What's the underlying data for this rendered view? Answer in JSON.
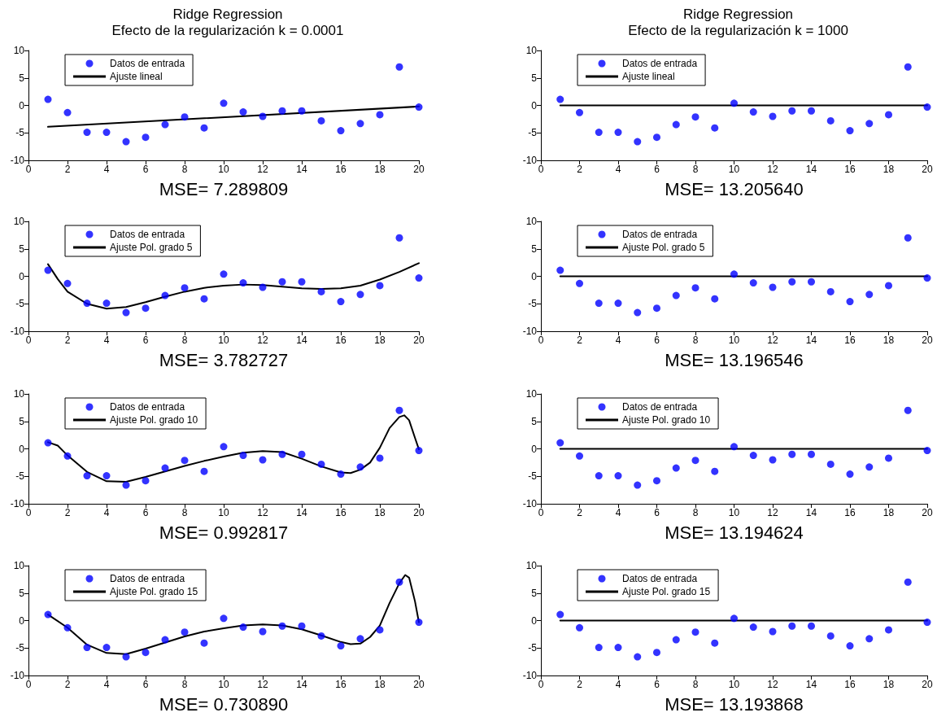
{
  "chart_data": [
    {
      "type": "scatter",
      "title": "Ridge Regression",
      "subtitle": "Efecto de la regularización k = 0.0001",
      "xlabel": "MSE= 7.289809",
      "x": [
        1,
        2,
        3,
        4,
        5,
        6,
        7,
        8,
        9,
        10,
        11,
        12,
        13,
        14,
        15,
        16,
        17,
        18,
        19,
        20
      ],
      "xlim": [
        0,
        20
      ],
      "xticks": [
        0,
        2,
        4,
        6,
        8,
        10,
        12,
        14,
        16,
        18,
        20
      ],
      "ylim": [
        -10,
        10
      ],
      "yticks": [
        -10,
        -5,
        0,
        5,
        10
      ],
      "grid": false,
      "legend": "top left",
      "series": [
        {
          "name": "Datos de entrada",
          "color": "#0000ff",
          "marker": "circle",
          "values": [
            1.1,
            -1.3,
            -4.9,
            -4.9,
            -6.6,
            -5.8,
            -3.5,
            -2.1,
            -4.1,
            0.4,
            -1.2,
            -2.0,
            -1.0,
            -1.0,
            -2.8,
            -4.6,
            -3.3,
            -1.7,
            7.0,
            -0.3
          ]
        },
        {
          "name": "Ajuste lineal",
          "type": "line",
          "color": "#000000",
          "marker": "none",
          "x": [
            1,
            20
          ],
          "values": [
            -3.9,
            -0.2
          ]
        }
      ]
    },
    {
      "type": "scatter",
      "title": "Ridge Regression",
      "subtitle": "Efecto de la regularización k = 1000",
      "xlabel": "MSE= 13.205640",
      "x": [
        1,
        2,
        3,
        4,
        5,
        6,
        7,
        8,
        9,
        10,
        11,
        12,
        13,
        14,
        15,
        16,
        17,
        18,
        19,
        20
      ],
      "xlim": [
        0,
        20
      ],
      "xticks": [
        0,
        2,
        4,
        6,
        8,
        10,
        12,
        14,
        16,
        18,
        20
      ],
      "ylim": [
        -10,
        10
      ],
      "yticks": [
        -10,
        -5,
        0,
        5,
        10
      ],
      "grid": false,
      "legend": "top left",
      "series": [
        {
          "name": "Datos de entrada",
          "color": "#0000ff",
          "marker": "circle",
          "values": [
            1.1,
            -1.3,
            -4.9,
            -4.9,
            -6.6,
            -5.8,
            -3.5,
            -2.1,
            -4.1,
            0.4,
            -1.2,
            -2.0,
            -1.0,
            -1.0,
            -2.8,
            -4.6,
            -3.3,
            -1.7,
            7.0,
            -0.3
          ]
        },
        {
          "name": "Ajuste lineal",
          "type": "line",
          "color": "#000000",
          "marker": "none",
          "x": [
            1,
            20
          ],
          "values": [
            0,
            0
          ]
        }
      ]
    },
    {
      "type": "scatter",
      "xlabel": "MSE= 3.782727",
      "x": [
        1,
        2,
        3,
        4,
        5,
        6,
        7,
        8,
        9,
        10,
        11,
        12,
        13,
        14,
        15,
        16,
        17,
        18,
        19,
        20
      ],
      "xlim": [
        0,
        20
      ],
      "xticks": [
        0,
        2,
        4,
        6,
        8,
        10,
        12,
        14,
        16,
        18,
        20
      ],
      "ylim": [
        -10,
        10
      ],
      "yticks": [
        -10,
        -5,
        0,
        5,
        10
      ],
      "grid": false,
      "legend": "top left",
      "series": [
        {
          "name": "Datos de entrada",
          "color": "#0000ff",
          "marker": "circle",
          "values": [
            1.1,
            -1.3,
            -4.9,
            -4.9,
            -6.6,
            -5.8,
            -3.5,
            -2.1,
            -4.1,
            0.4,
            -1.2,
            -2.0,
            -1.0,
            -1.0,
            -2.8,
            -4.6,
            -3.3,
            -1.7,
            7.0,
            -0.3
          ]
        },
        {
          "name": "Ajuste Pol. grado 5",
          "type": "line",
          "color": "#000000",
          "marker": "none",
          "x": [
            1,
            1.5,
            2,
            3,
            4,
            5,
            6,
            7,
            8,
            9,
            10,
            11,
            12,
            13,
            14,
            15,
            16,
            17,
            18,
            19,
            20
          ],
          "values": [
            2.2,
            -0.5,
            -2.8,
            -5.0,
            -5.9,
            -5.6,
            -4.7,
            -3.7,
            -2.8,
            -2.1,
            -1.7,
            -1.5,
            -1.6,
            -1.9,
            -2.2,
            -2.3,
            -2.2,
            -1.7,
            -0.6,
            0.8,
            2.4
          ]
        }
      ]
    },
    {
      "type": "scatter",
      "xlabel": "MSE= 13.196546",
      "x": [
        1,
        2,
        3,
        4,
        5,
        6,
        7,
        8,
        9,
        10,
        11,
        12,
        13,
        14,
        15,
        16,
        17,
        18,
        19,
        20
      ],
      "xlim": [
        0,
        20
      ],
      "xticks": [
        0,
        2,
        4,
        6,
        8,
        10,
        12,
        14,
        16,
        18,
        20
      ],
      "ylim": [
        -10,
        10
      ],
      "yticks": [
        -10,
        -5,
        0,
        5,
        10
      ],
      "grid": false,
      "legend": "top left",
      "series": [
        {
          "name": "Datos de entrada",
          "color": "#0000ff",
          "marker": "circle",
          "values": [
            1.1,
            -1.3,
            -4.9,
            -4.9,
            -6.6,
            -5.8,
            -3.5,
            -2.1,
            -4.1,
            0.4,
            -1.2,
            -2.0,
            -1.0,
            -1.0,
            -2.8,
            -4.6,
            -3.3,
            -1.7,
            7.0,
            -0.3
          ]
        },
        {
          "name": "Ajuste Pol. grado 5",
          "type": "line",
          "color": "#000000",
          "marker": "none",
          "x": [
            1,
            20
          ],
          "values": [
            0,
            0
          ]
        }
      ]
    },
    {
      "type": "scatter",
      "xlabel": "MSE= 0.992817",
      "x": [
        1,
        2,
        3,
        4,
        5,
        6,
        7,
        8,
        9,
        10,
        11,
        12,
        13,
        14,
        15,
        16,
        17,
        18,
        19,
        20
      ],
      "xlim": [
        0,
        20
      ],
      "xticks": [
        0,
        2,
        4,
        6,
        8,
        10,
        12,
        14,
        16,
        18,
        20
      ],
      "ylim": [
        -10,
        10
      ],
      "yticks": [
        -10,
        -5,
        0,
        5,
        10
      ],
      "grid": false,
      "legend": "top left",
      "series": [
        {
          "name": "Datos de entrada",
          "color": "#0000ff",
          "marker": "circle",
          "values": [
            1.1,
            -1.3,
            -4.9,
            -4.9,
            -6.6,
            -5.8,
            -3.5,
            -2.1,
            -4.1,
            0.4,
            -1.2,
            -2.0,
            -1.0,
            -1.0,
            -2.8,
            -4.6,
            -3.3,
            -1.7,
            7.0,
            -0.3
          ]
        },
        {
          "name": "Ajuste Pol. grado 10",
          "type": "line",
          "color": "#000000",
          "marker": "none",
          "x": [
            1,
            1.5,
            2,
            3,
            4,
            5,
            6,
            7,
            8,
            9,
            10,
            11,
            12,
            13,
            14,
            15,
            16,
            16.5,
            17,
            17.5,
            18,
            18.5,
            19,
            19.25,
            19.5,
            19.8,
            20
          ],
          "values": [
            1.2,
            0.6,
            -1.2,
            -4.2,
            -5.9,
            -6.0,
            -5.1,
            -4.1,
            -3.1,
            -2.2,
            -1.4,
            -0.7,
            -0.4,
            -0.6,
            -1.8,
            -3.2,
            -4.3,
            -4.4,
            -3.8,
            -2.5,
            0.2,
            3.8,
            5.8,
            6.1,
            5.2,
            2.0,
            -0.1
          ]
        }
      ]
    },
    {
      "type": "scatter",
      "xlabel": "MSE= 13.194624",
      "x": [
        1,
        2,
        3,
        4,
        5,
        6,
        7,
        8,
        9,
        10,
        11,
        12,
        13,
        14,
        15,
        16,
        17,
        18,
        19,
        20
      ],
      "xlim": [
        0,
        20
      ],
      "xticks": [
        0,
        2,
        4,
        6,
        8,
        10,
        12,
        14,
        16,
        18,
        20
      ],
      "ylim": [
        -10,
        10
      ],
      "yticks": [
        -10,
        -5,
        0,
        5,
        10
      ],
      "grid": false,
      "legend": "top left",
      "series": [
        {
          "name": "Datos de entrada",
          "color": "#0000ff",
          "marker": "circle",
          "values": [
            1.1,
            -1.3,
            -4.9,
            -4.9,
            -6.6,
            -5.8,
            -3.5,
            -2.1,
            -4.1,
            0.4,
            -1.2,
            -2.0,
            -1.0,
            -1.0,
            -2.8,
            -4.6,
            -3.3,
            -1.7,
            7.0,
            -0.3
          ]
        },
        {
          "name": "Ajuste Pol. grado 10",
          "type": "line",
          "color": "#000000",
          "marker": "none",
          "x": [
            1,
            20
          ],
          "values": [
            0,
            0
          ]
        }
      ]
    },
    {
      "type": "scatter",
      "xlabel": "MSE= 0.730890",
      "x": [
        1,
        2,
        3,
        4,
        5,
        6,
        7,
        8,
        9,
        10,
        11,
        12,
        13,
        14,
        15,
        16,
        17,
        18,
        19,
        20
      ],
      "xlim": [
        0,
        20
      ],
      "xticks": [
        0,
        2,
        4,
        6,
        8,
        10,
        12,
        14,
        16,
        18,
        20
      ],
      "ylim": [
        -10,
        10
      ],
      "yticks": [
        -10,
        -5,
        0,
        5,
        10
      ],
      "grid": false,
      "legend": "top left",
      "series": [
        {
          "name": "Datos de entrada",
          "color": "#0000ff",
          "marker": "circle",
          "values": [
            1.1,
            -1.3,
            -4.9,
            -4.9,
            -6.6,
            -5.8,
            -3.5,
            -2.1,
            -4.1,
            0.4,
            -1.2,
            -2.0,
            -1.0,
            -1.0,
            -2.8,
            -4.6,
            -3.3,
            -1.7,
            7.0,
            -0.3
          ]
        },
        {
          "name": "Ajuste Pol. grado 15",
          "type": "line",
          "color": "#000000",
          "marker": "none",
          "x": [
            1,
            2,
            3,
            4,
            5,
            6,
            7,
            8,
            9,
            10,
            11,
            12,
            13,
            14,
            15,
            16,
            16.5,
            17,
            17.5,
            18,
            18.5,
            19,
            19.3,
            19.5,
            19.8,
            20
          ],
          "values": [
            1.1,
            -1.3,
            -4.4,
            -5.9,
            -6.1,
            -5.1,
            -4.0,
            -2.9,
            -2.0,
            -1.4,
            -0.9,
            -0.7,
            -0.9,
            -1.6,
            -2.7,
            -3.9,
            -4.3,
            -4.2,
            -3.0,
            -0.9,
            3.2,
            6.8,
            8.3,
            7.8,
            3.5,
            -0.3
          ]
        }
      ]
    },
    {
      "type": "scatter",
      "xlabel": "MSE= 13.193868",
      "x": [
        1,
        2,
        3,
        4,
        5,
        6,
        7,
        8,
        9,
        10,
        11,
        12,
        13,
        14,
        15,
        16,
        17,
        18,
        19,
        20
      ],
      "xlim": [
        0,
        20
      ],
      "xticks": [
        0,
        2,
        4,
        6,
        8,
        10,
        12,
        14,
        16,
        18,
        20
      ],
      "ylim": [
        -10,
        10
      ],
      "yticks": [
        -10,
        -5,
        0,
        5,
        10
      ],
      "grid": false,
      "legend": "top left",
      "series": [
        {
          "name": "Datos de entrada",
          "color": "#0000ff",
          "marker": "circle",
          "values": [
            1.1,
            -1.3,
            -4.9,
            -4.9,
            -6.6,
            -5.8,
            -3.5,
            -2.1,
            -4.1,
            0.4,
            -1.2,
            -2.0,
            -1.0,
            -1.0,
            -2.8,
            -4.6,
            -3.3,
            -1.7,
            7.0,
            -0.3
          ]
        },
        {
          "name": "Ajuste Pol. grado 15",
          "type": "line",
          "color": "#000000",
          "marker": "none",
          "x": [
            1,
            20
          ],
          "values": [
            0,
            0
          ]
        }
      ]
    }
  ]
}
